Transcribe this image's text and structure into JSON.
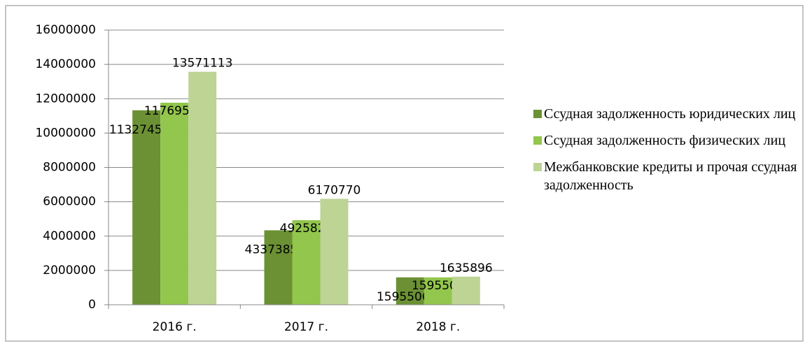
{
  "chart_data": {
    "type": "bar",
    "categories": [
      "2016 г.",
      "2017 г.",
      "2018 г."
    ],
    "series": [
      {
        "name": "Ссудная задолженность юридических лиц",
        "color": "#6b9134",
        "values": [
          11327452,
          4337385,
          1595506
        ]
      },
      {
        "name": "Ссудная задолженность физических лиц",
        "color": "#92c64c",
        "values": [
          11769505,
          4925822,
          1595506
        ]
      },
      {
        "name": "Межбанковские кредиты и прочая ссудная задолженность",
        "color": "#bdd495",
        "values": [
          13571113,
          6170770,
          1635896
        ]
      }
    ],
    "ylim": [
      0,
      16000000
    ],
    "yticks": [
      0,
      2000000,
      4000000,
      6000000,
      8000000,
      10000000,
      12000000,
      14000000,
      16000000
    ],
    "grid": true,
    "legend": "right"
  }
}
